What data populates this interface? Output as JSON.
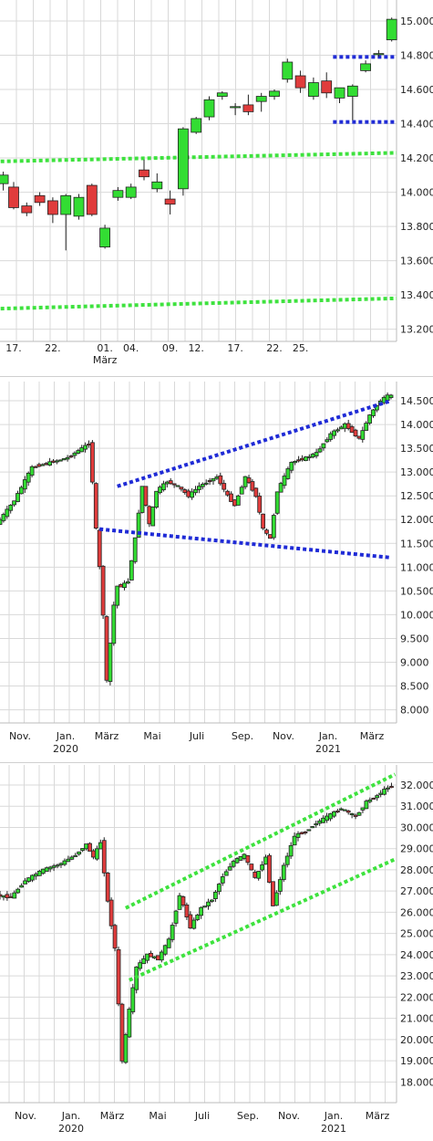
{
  "chart_data": [
    {
      "type": "candlestick",
      "title": "",
      "ylim": [
        13150,
        15080
      ],
      "yticks": [
        "15.000",
        "14.800",
        "14.600",
        "14.400",
        "14.200",
        "14.000",
        "13.800",
        "13.600",
        "13.400",
        "13.200"
      ],
      "ytick_values": [
        15000,
        14800,
        14600,
        14400,
        14200,
        14000,
        13800,
        13600,
        13400,
        13200
      ],
      "xticks": [
        "17.",
        "22.",
        "01.",
        "04.",
        "09.",
        "12.",
        "17.",
        "22.",
        "25."
      ],
      "xtick_index": [
        0,
        3,
        7,
        9,
        12,
        14,
        17,
        20,
        22
      ],
      "xlabel_sub": [
        {
          "text": "März",
          "index": 7
        }
      ],
      "n_slots": 26,
      "candles": [
        {
          "i": -0.8,
          "o": 14050,
          "h": 14120,
          "l": 14010,
          "c": 14100
        },
        {
          "i": 0,
          "o": 14030,
          "h": 14060,
          "l": 13900,
          "c": 13910
        },
        {
          "i": 1,
          "o": 13920,
          "h": 13940,
          "l": 13860,
          "c": 13880
        },
        {
          "i": 2,
          "o": 13980,
          "h": 14000,
          "l": 13920,
          "c": 13940
        },
        {
          "i": 3,
          "o": 13950,
          "h": 13970,
          "l": 13820,
          "c": 13870
        },
        {
          "i": 4,
          "o": 13870,
          "h": 13990,
          "l": 13660,
          "c": 13980
        },
        {
          "i": 5,
          "o": 13860,
          "h": 13990,
          "l": 13840,
          "c": 13970
        },
        {
          "i": 6,
          "o": 14040,
          "h": 14050,
          "l": 13860,
          "c": 13870
        },
        {
          "i": 7,
          "o": 13680,
          "h": 13810,
          "l": 13670,
          "c": 13790
        },
        {
          "i": 8,
          "o": 13970,
          "h": 14030,
          "l": 13950,
          "c": 14010
        },
        {
          "i": 9,
          "o": 13970,
          "h": 14050,
          "l": 13960,
          "c": 14030
        },
        {
          "i": 10,
          "o": 14130,
          "h": 14190,
          "l": 14070,
          "c": 14090
        },
        {
          "i": 11,
          "o": 14020,
          "h": 14110,
          "l": 14000,
          "c": 14060
        },
        {
          "i": 12,
          "o": 13960,
          "h": 14010,
          "l": 13870,
          "c": 13930
        },
        {
          "i": 13,
          "o": 14020,
          "h": 14380,
          "l": 13980,
          "c": 14370
        },
        {
          "i": 14,
          "o": 14350,
          "h": 14440,
          "l": 14340,
          "c": 14430
        },
        {
          "i": 15,
          "o": 14440,
          "h": 14560,
          "l": 14420,
          "c": 14540
        },
        {
          "i": 16,
          "o": 14560,
          "h": 14590,
          "l": 14540,
          "c": 14580
        },
        {
          "i": 17,
          "o": 14500,
          "h": 14520,
          "l": 14450,
          "c": 14500
        },
        {
          "i": 18,
          "o": 14510,
          "h": 14570,
          "l": 14450,
          "c": 14470
        },
        {
          "i": 19,
          "o": 14530,
          "h": 14580,
          "l": 14470,
          "c": 14560
        },
        {
          "i": 20,
          "o": 14560,
          "h": 14600,
          "l": 14540,
          "c": 14590
        },
        {
          "i": 21,
          "o": 14660,
          "h": 14780,
          "l": 14640,
          "c": 14760
        },
        {
          "i": 22,
          "o": 14680,
          "h": 14710,
          "l": 14580,
          "c": 14610
        },
        {
          "i": 23,
          "o": 14560,
          "h": 14670,
          "l": 14540,
          "c": 14640
        },
        {
          "i": 24,
          "o": 14650,
          "h": 14700,
          "l": 14550,
          "c": 14580
        },
        {
          "i": 25,
          "o": 14550,
          "h": 14610,
          "l": 14520,
          "c": 14610
        },
        {
          "i": 26,
          "o": 14560,
          "h": 14630,
          "l": 14420,
          "c": 14620
        },
        {
          "i": 27,
          "o": 14710,
          "h": 14770,
          "l": 14700,
          "c": 14750
        },
        {
          "i": 28,
          "o": 14810,
          "h": 14830,
          "l": 14790,
          "c": 14810
        },
        {
          "i": 29,
          "o": 14890,
          "h": 15020,
          "l": 14880,
          "c": 15010
        }
      ],
      "trendlines": [
        {
          "color": "#1f2bd6",
          "points": [
            [
              24.5,
              14790
            ],
            [
              31,
              14790
            ]
          ]
        },
        {
          "color": "#1f2bd6",
          "points": [
            [
              24.5,
              14410
            ],
            [
              31,
              14410
            ]
          ]
        },
        {
          "color": "#3ee23e",
          "points": [
            [
              -1,
              14180
            ],
            [
              31,
              14230
            ]
          ]
        },
        {
          "color": "#3ee23e",
          "points": [
            [
              -1,
              13320
            ],
            [
              31,
              13380
            ]
          ]
        }
      ]
    },
    {
      "type": "candlestick",
      "title": "",
      "ylim": [
        7800,
        14750
      ],
      "yticks": [
        "14.500",
        "14.000",
        "13.500",
        "13.000",
        "12.500",
        "12.000",
        "11.500",
        "11.000",
        "10.500",
        "10.000",
        "9.500",
        "9.000",
        "8.500",
        "8.000"
      ],
      "ytick_values": [
        14500,
        14000,
        13500,
        13000,
        12500,
        12000,
        11500,
        11000,
        10500,
        10000,
        9500,
        9000,
        8500,
        8000
      ],
      "xticks": [
        "Nov.",
        "Jan.",
        "März",
        "Mai",
        "Juli",
        "Sep.",
        "Nov.",
        "Jan.",
        "März"
      ],
      "year_labels": [
        "2020",
        "2021"
      ],
      "trend": [
        [
          0,
          11900
        ],
        [
          10,
          12400
        ],
        [
          20,
          13100
        ],
        [
          40,
          13300
        ],
        [
          52,
          13600
        ],
        [
          54,
          12800
        ],
        [
          56,
          11800
        ],
        [
          58,
          11000
        ],
        [
          60,
          10000
        ],
        [
          62,
          8600
        ],
        [
          64,
          9400
        ],
        [
          66,
          10200
        ],
        [
          68,
          10600
        ],
        [
          70,
          10600
        ],
        [
          74,
          10700
        ],
        [
          78,
          11600
        ],
        [
          82,
          12700
        ],
        [
          86,
          11900
        ],
        [
          90,
          12600
        ],
        [
          96,
          12800
        ],
        [
          102,
          12700
        ],
        [
          108,
          12500
        ],
        [
          114,
          12700
        ],
        [
          124,
          12900
        ],
        [
          130,
          12500
        ],
        [
          134,
          12300
        ],
        [
          140,
          12900
        ],
        [
          146,
          12500
        ],
        [
          150,
          11800
        ],
        [
          154,
          11600
        ],
        [
          158,
          12600
        ],
        [
          166,
          13200
        ],
        [
          174,
          13300
        ],
        [
          180,
          13400
        ],
        [
          188,
          13800
        ],
        [
          196,
          14000
        ],
        [
          204,
          13700
        ],
        [
          210,
          14200
        ],
        [
          216,
          14500
        ],
        [
          220,
          14600
        ]
      ],
      "trendlines": [
        {
          "color": "#1f2bd6",
          "points": [
            [
              66,
              12700
            ],
            [
              220,
              14500
            ]
          ]
        },
        {
          "color": "#1f2bd6",
          "points": [
            [
              56,
              11800
            ],
            [
              220,
              11200
            ]
          ]
        }
      ]
    },
    {
      "type": "candlestick",
      "title": "",
      "ylim": [
        17200,
        32600
      ],
      "yticks": [
        "32.000",
        "31.000",
        "30.000",
        "29.000",
        "28.000",
        "27.000",
        "26.000",
        "25.000",
        "24.000",
        "23.000",
        "22.000",
        "21.000",
        "20.000",
        "19.000",
        "18.000"
      ],
      "ytick_values": [
        32000,
        31000,
        30000,
        29000,
        28000,
        27000,
        26000,
        25000,
        24000,
        23000,
        22000,
        21000,
        20000,
        19000,
        18000
      ],
      "xticks": [
        "Nov.",
        "Jan.",
        "März",
        "Mai",
        "Juli",
        "Sep.",
        "Nov.",
        "Jan.",
        "März"
      ],
      "year_labels": [
        "2020",
        "2021"
      ],
      "trend": [
        [
          0,
          26800
        ],
        [
          8,
          26700
        ],
        [
          16,
          27500
        ],
        [
          26,
          28000
        ],
        [
          36,
          28300
        ],
        [
          44,
          28700
        ],
        [
          50,
          29200
        ],
        [
          54,
          28600
        ],
        [
          58,
          29300
        ],
        [
          62,
          26500
        ],
        [
          66,
          24300
        ],
        [
          70,
          19000
        ],
        [
          74,
          21400
        ],
        [
          78,
          23400
        ],
        [
          84,
          24000
        ],
        [
          90,
          23800
        ],
        [
          96,
          24700
        ],
        [
          102,
          26800
        ],
        [
          108,
          25300
        ],
        [
          114,
          26200
        ],
        [
          120,
          26600
        ],
        [
          126,
          27700
        ],
        [
          132,
          28400
        ],
        [
          138,
          28700
        ],
        [
          144,
          27600
        ],
        [
          150,
          28600
        ],
        [
          154,
          26300
        ],
        [
          160,
          28200
        ],
        [
          166,
          29600
        ],
        [
          172,
          29800
        ],
        [
          178,
          30200
        ],
        [
          184,
          30500
        ],
        [
          192,
          30900
        ],
        [
          200,
          30500
        ],
        [
          206,
          31200
        ],
        [
          212,
          31500
        ],
        [
          218,
          31900
        ]
      ],
      "trendlines": [
        {
          "color": "#3ee23e",
          "points": [
            [
              70,
              26200
            ],
            [
              220,
              32500
            ]
          ]
        },
        {
          "color": "#3ee23e",
          "points": [
            [
              72,
              22800
            ],
            [
              220,
              28500
            ]
          ]
        }
      ]
    }
  ]
}
